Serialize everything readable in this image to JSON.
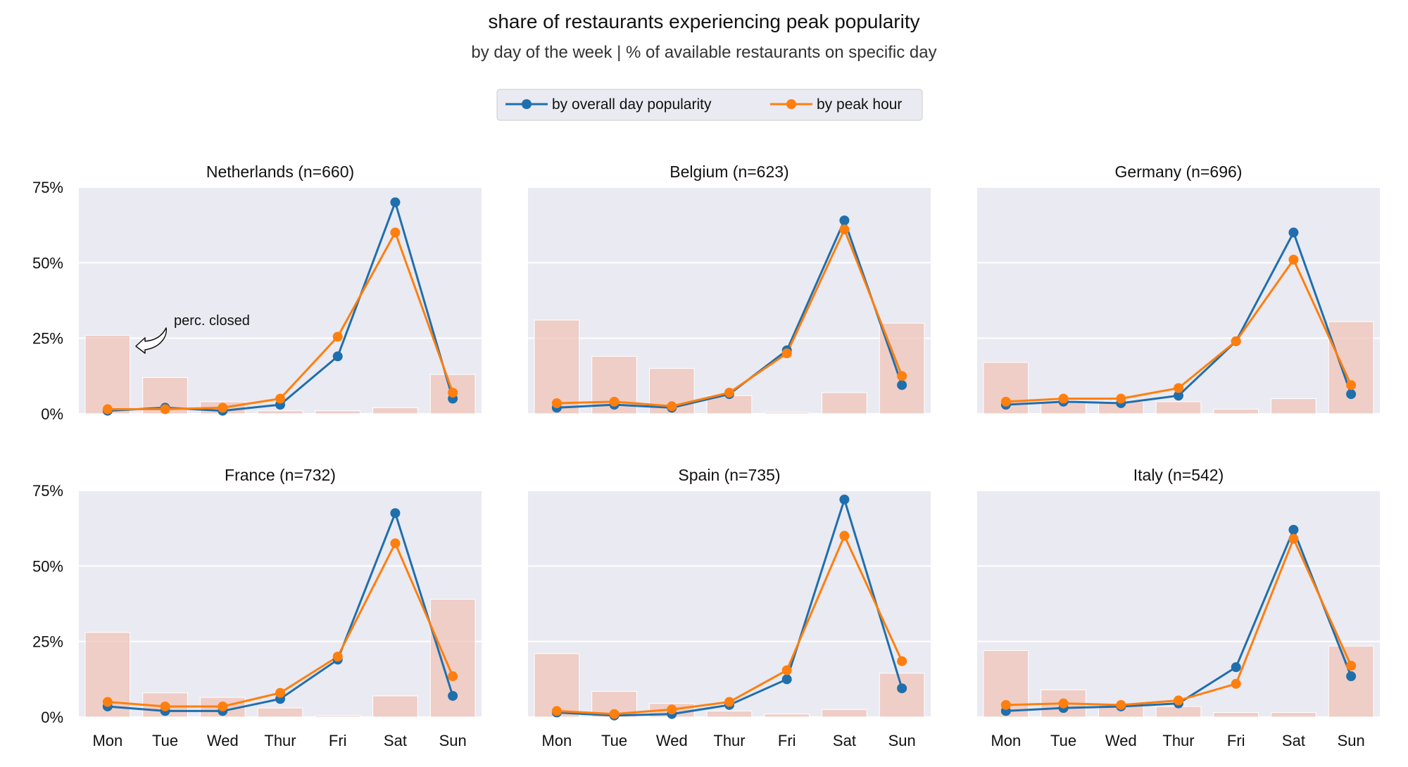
{
  "chart_data": {
    "type": "line",
    "title": "share of restaurants experiencing peak popularity",
    "subtitle": "by day of the week | % of available restaurants on specific day",
    "categories": [
      "Mon",
      "Tue",
      "Wed",
      "Thur",
      "Fri",
      "Sat",
      "Sun"
    ],
    "yticks": [
      "75%",
      "50%",
      "25%",
      "0%"
    ],
    "ylim": [
      0,
      75
    ],
    "grid": true,
    "legend_position": "top-center",
    "legend": [
      {
        "name": "by overall day popularity",
        "color": "#1f6fad"
      },
      {
        "name": "by peak hour",
        "color": "#ff7f0e"
      }
    ],
    "annotation": "perc. closed",
    "bar_color": "#f0c4b8",
    "panels": [
      {
        "title": "Netherlands (n=660)",
        "closed": [
          26,
          12,
          4,
          1,
          1,
          2,
          13
        ],
        "series": [
          {
            "name": "by overall day popularity",
            "values": [
              1,
              2,
              1,
              3,
              19,
              70,
              5
            ]
          },
          {
            "name": "by peak hour",
            "values": [
              1.5,
              1.5,
              2,
              5,
              25.5,
              60,
              7
            ]
          }
        ]
      },
      {
        "title": "Belgium (n=623)",
        "closed": [
          31,
          19,
          15,
          6,
          0.5,
          7,
          30
        ],
        "series": [
          {
            "name": "by overall day popularity",
            "values": [
              2,
              3,
              2,
              6.5,
              21,
              64,
              9.5
            ]
          },
          {
            "name": "by peak hour",
            "values": [
              3.5,
              4,
              2.5,
              7,
              20,
              61,
              12.5
            ]
          }
        ]
      },
      {
        "title": "Germany (n=696)",
        "closed": [
          17,
          4,
          4,
          4,
          1.5,
          5,
          30.5
        ],
        "series": [
          {
            "name": "by overall day popularity",
            "values": [
              3,
              4,
              3.5,
              6,
              24,
              60,
              6.5
            ]
          },
          {
            "name": "by peak hour",
            "values": [
              4,
              5,
              5,
              8.5,
              24,
              51,
              9.5
            ]
          }
        ]
      },
      {
        "title": "France (n=732)",
        "closed": [
          28,
          8,
          6.5,
          3,
          0.5,
          7,
          39
        ],
        "series": [
          {
            "name": "by overall day popularity",
            "values": [
              3.5,
              2,
              2,
              6,
              19,
              67.5,
              7
            ]
          },
          {
            "name": "by peak hour",
            "values": [
              5,
              3.5,
              3.5,
              8,
              20,
              57.5,
              13.5
            ]
          }
        ]
      },
      {
        "title": "Spain (n=735)",
        "closed": [
          21,
          8.5,
          4.5,
          2,
          1,
          2.5,
          14.5
        ],
        "series": [
          {
            "name": "by overall day popularity",
            "values": [
              1.5,
              0.5,
              1,
              4,
              12.5,
              72,
              9.5
            ]
          },
          {
            "name": "by peak hour",
            "values": [
              2,
              1,
              2.5,
              5,
              15.5,
              60,
              18.5
            ]
          }
        ]
      },
      {
        "title": "Italy (n=542)",
        "closed": [
          22,
          9,
          4,
          3.5,
          1.5,
          1.5,
          23.5
        ],
        "series": [
          {
            "name": "by overall day popularity",
            "values": [
              2,
              3,
              3.5,
              4.5,
              16.5,
              62,
              13.5
            ]
          },
          {
            "name": "by peak hour",
            "values": [
              4,
              4.5,
              4,
              5.5,
              11,
              59,
              17
            ]
          }
        ]
      }
    ]
  }
}
